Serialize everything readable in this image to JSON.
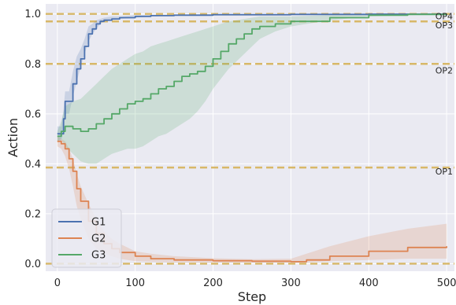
{
  "chart_data": {
    "type": "line",
    "xlabel": "Step",
    "ylabel": "Action",
    "xlim": [
      -15,
      510
    ],
    "ylim": [
      -0.03,
      1.04
    ],
    "xticks": [
      0,
      100,
      200,
      300,
      400,
      500
    ],
    "yticks": [
      0.0,
      0.2,
      0.4,
      0.6,
      0.8,
      1.0
    ],
    "grid": true,
    "background": "#EAEAF2",
    "legend_position": "lower-left",
    "reference_lines": [
      {
        "label": "OP1",
        "y": 0.385,
        "color": "#D8B868"
      },
      {
        "label": "OP2",
        "y": 0.8,
        "color": "#D8B868"
      },
      {
        "label": "OP3",
        "y": 0.97,
        "color": "#D8B868"
      },
      {
        "label": "OP4",
        "y": 1.0,
        "color": "#D8B868"
      },
      {
        "label": "",
        "y": 0.0,
        "color": "#D8B868"
      }
    ],
    "series": [
      {
        "name": "G1",
        "color": "#4C72B0",
        "x": [
          0,
          5,
          8,
          10,
          15,
          20,
          25,
          30,
          35,
          40,
          45,
          50,
          55,
          60,
          70,
          80,
          100,
          120,
          150,
          200,
          300,
          400,
          500
        ],
        "y": [
          0.52,
          0.52,
          0.58,
          0.65,
          0.65,
          0.72,
          0.78,
          0.82,
          0.87,
          0.92,
          0.94,
          0.96,
          0.97,
          0.975,
          0.98,
          0.985,
          0.99,
          0.993,
          0.995,
          0.997,
          0.998,
          0.999,
          1.0
        ],
        "band_lower": [
          0.49,
          0.49,
          0.54,
          0.6,
          0.6,
          0.67,
          0.73,
          0.79,
          0.84,
          0.89,
          0.92,
          0.94,
          0.96,
          0.97,
          0.975,
          0.98,
          0.985,
          0.99,
          0.993,
          0.995,
          0.997,
          0.998,
          0.999
        ],
        "band_upper": [
          0.55,
          0.55,
          0.62,
          0.69,
          0.69,
          0.77,
          0.83,
          0.86,
          0.9,
          0.95,
          0.96,
          0.975,
          0.98,
          0.985,
          0.99,
          0.99,
          0.995,
          0.996,
          0.997,
          0.999,
          0.999,
          1.0,
          1.0
        ]
      },
      {
        "name": "G2",
        "color": "#DD8452",
        "x": [
          0,
          5,
          10,
          15,
          20,
          25,
          30,
          40,
          50,
          60,
          70,
          80,
          100,
          120,
          150,
          200,
          250,
          300,
          320,
          350,
          400,
          450,
          500
        ],
        "y": [
          0.49,
          0.48,
          0.46,
          0.42,
          0.37,
          0.3,
          0.25,
          0.17,
          0.12,
          0.08,
          0.06,
          0.045,
          0.03,
          0.02,
          0.015,
          0.012,
          0.01,
          0.008,
          0.015,
          0.03,
          0.05,
          0.065,
          0.07
        ],
        "band_lower": [
          0.47,
          0.46,
          0.43,
          0.38,
          0.31,
          0.23,
          0.18,
          0.1,
          0.06,
          0.04,
          0.03,
          0.02,
          0.01,
          0.008,
          0.006,
          0.005,
          0.004,
          0.003,
          0.005,
          0.01,
          0.015,
          0.02,
          0.02
        ],
        "band_upper": [
          0.51,
          0.5,
          0.49,
          0.46,
          0.42,
          0.36,
          0.31,
          0.24,
          0.18,
          0.13,
          0.1,
          0.08,
          0.05,
          0.04,
          0.03,
          0.022,
          0.018,
          0.02,
          0.04,
          0.07,
          0.11,
          0.14,
          0.16
        ]
      },
      {
        "name": "G3",
        "color": "#55A868",
        "x": [
          0,
          5,
          10,
          20,
          30,
          40,
          50,
          60,
          70,
          80,
          90,
          100,
          110,
          120,
          130,
          140,
          150,
          160,
          170,
          180,
          190,
          200,
          210,
          220,
          230,
          240,
          250,
          260,
          280,
          300,
          350,
          400,
          450,
          500
        ],
        "y": [
          0.51,
          0.53,
          0.55,
          0.54,
          0.53,
          0.54,
          0.56,
          0.58,
          0.6,
          0.62,
          0.64,
          0.65,
          0.66,
          0.68,
          0.7,
          0.71,
          0.73,
          0.75,
          0.76,
          0.77,
          0.79,
          0.82,
          0.85,
          0.88,
          0.9,
          0.92,
          0.94,
          0.95,
          0.96,
          0.97,
          0.985,
          0.995,
          0.998,
          1.0
        ],
        "band_lower": [
          0.49,
          0.5,
          0.47,
          0.44,
          0.41,
          0.4,
          0.4,
          0.42,
          0.44,
          0.45,
          0.46,
          0.46,
          0.47,
          0.49,
          0.51,
          0.52,
          0.54,
          0.56,
          0.58,
          0.61,
          0.65,
          0.7,
          0.74,
          0.78,
          0.81,
          0.84,
          0.87,
          0.9,
          0.93,
          0.95,
          0.975,
          0.99,
          0.995,
          0.998
        ],
        "band_upper": [
          0.53,
          0.57,
          0.63,
          0.65,
          0.66,
          0.69,
          0.72,
          0.75,
          0.78,
          0.8,
          0.82,
          0.84,
          0.85,
          0.87,
          0.88,
          0.89,
          0.9,
          0.91,
          0.92,
          0.93,
          0.94,
          0.95,
          0.96,
          0.97,
          0.975,
          0.98,
          0.985,
          0.99,
          0.99,
          0.99,
          0.995,
          1.0,
          1.0,
          1.0
        ]
      }
    ]
  }
}
